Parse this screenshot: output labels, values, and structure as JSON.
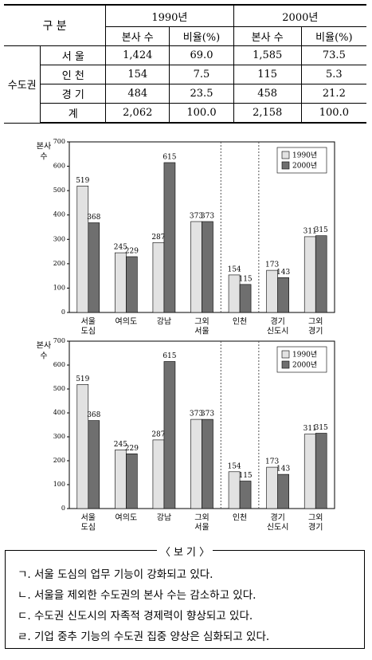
{
  "table": {
    "header": [
      [
        "구 분",
        "1990년",
        "2000년"
      ],
      [
        "본사 수",
        "비율(%)",
        "본사 수",
        "비율(%)"
      ]
    ],
    "group": "수도권",
    "rows": [
      [
        "서 울",
        "1,424",
        "69.0",
        "1,585",
        "73.5"
      ],
      [
        "인 천",
        "154",
        "7.5",
        "115",
        "5.3"
      ],
      [
        "경 기",
        "484",
        "23.5",
        "458",
        "21.2"
      ],
      [
        "계",
        "2,062",
        "100.0",
        "2,158",
        "100.0"
      ]
    ]
  },
  "chart_data": [
    {
      "type": "bar",
      "ylabel": [
        "본사",
        "수"
      ],
      "categories": [
        [
          "서울",
          "도심"
        ],
        [
          "여의도"
        ],
        [
          "강남"
        ],
        [
          "그외",
          "서울"
        ],
        [
          "인천"
        ],
        [
          "경기",
          "신도시"
        ],
        [
          "그외",
          "경기"
        ]
      ],
      "series": [
        {
          "name": "1990년",
          "color": "#e2e2e2",
          "values": [
            519,
            245,
            287,
            373,
            154,
            173,
            311
          ]
        },
        {
          "name": "2000년",
          "color": "#6f6f6f",
          "values": [
            368,
            229,
            615,
            373,
            115,
            143,
            315
          ]
        }
      ],
      "ylim": [
        0,
        700
      ],
      "yticks": [
        0,
        100,
        200,
        300,
        400,
        500,
        600,
        700
      ],
      "legend": "top-right"
    },
    {
      "type": "bar",
      "ylabel": [
        "본사",
        "수"
      ],
      "categories": [
        [
          "서울",
          "도심"
        ],
        [
          "여의도"
        ],
        [
          "강남"
        ],
        [
          "그외",
          "서울"
        ],
        [
          "인천"
        ],
        [
          "경기",
          "신도시"
        ],
        [
          "그외",
          "경기"
        ]
      ],
      "series": [
        {
          "name": "1990년",
          "color": "#e2e2e2",
          "values": [
            519,
            245,
            287,
            373,
            154,
            173,
            311
          ]
        },
        {
          "name": "2000년",
          "color": "#6f6f6f",
          "values": [
            368,
            229,
            615,
            373,
            115,
            143,
            315
          ]
        }
      ],
      "ylim": [
        0,
        700
      ],
      "yticks": [
        0,
        100,
        200,
        300,
        400,
        500,
        600,
        700
      ],
      "legend": "top-right"
    }
  ],
  "box": {
    "title": "〈 보 기 〉",
    "items": [
      "ㄱ. 서울 도심의 업무 기능이 강화되고 있다.",
      "ㄴ. 서울을 제외한 수도권의 본사 수는 감소하고 있다.",
      "ㄷ. 수도권 신도시의 자족적 경제력이 향상되고 있다.",
      "ㄹ. 기업 중추 기능의 수도권 집중 양상은 심화되고 있다."
    ]
  }
}
